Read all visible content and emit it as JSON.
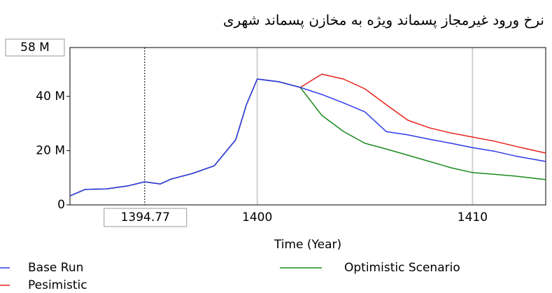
{
  "chart_data": {
    "type": "line",
    "title": "نرخ ورود غیرمجاز پسماند ویژه به مخازن پسماند شهری",
    "x_label": "Time (Year)",
    "x": [
      1391.3,
      1392,
      1393,
      1394,
      1394.77,
      1395.5,
      1396,
      1397,
      1398,
      1399,
      1399.5,
      1400,
      1401,
      1402,
      1403,
      1404,
      1405,
      1406,
      1407,
      1408,
      1409,
      1410,
      1411,
      1412,
      1413.4
    ],
    "series": [
      {
        "name": "Pesimistic",
        "color": "#e8211a",
        "values": [
          3300000,
          5700000,
          5900000,
          7000000,
          8500000,
          7700000,
          9500000,
          11600000,
          14400000,
          24000000,
          37000000,
          46400000,
          45400000,
          43300000,
          48200000,
          46400000,
          42800000,
          36900000,
          31200000,
          28400000,
          26500000,
          25000000,
          23500000,
          21600000,
          19100000
        ]
      },
      {
        "name": "Optimistic Scenario",
        "color": "#1b8a1b",
        "values": [
          3300000,
          5700000,
          5900000,
          7000000,
          8500000,
          7700000,
          9500000,
          11600000,
          14400000,
          24000000,
          37000000,
          46400000,
          45400000,
          43300000,
          33000000,
          27100000,
          22700000,
          20600000,
          18300000,
          16000000,
          13700000,
          11900000,
          11300000,
          10600000,
          9300000
        ]
      },
      {
        "name": "Base Run",
        "color": "#2f3ae8",
        "values": [
          3300000,
          5700000,
          5900000,
          7000000,
          8500000,
          7700000,
          9500000,
          11600000,
          14400000,
          24000000,
          37000000,
          46400000,
          45400000,
          43300000,
          40700000,
          37600000,
          34300000,
          27000000,
          25800000,
          24200000,
          22700000,
          21100000,
          19800000,
          18000000,
          16000000
        ]
      }
    ],
    "xlim": [
      1391.3,
      1413.4
    ],
    "xticks": [
      1400,
      1410
    ],
    "ylim": [
      0,
      58000000
    ],
    "yticks": [
      0,
      {
        "value": 20000000,
        "label": "20 M"
      },
      {
        "value": 40000000,
        "label": "40 M"
      },
      {
        "value": 58000000,
        "label": "58 M"
      }
    ],
    "cursor_x": 1394.77,
    "grid": true
  }
}
